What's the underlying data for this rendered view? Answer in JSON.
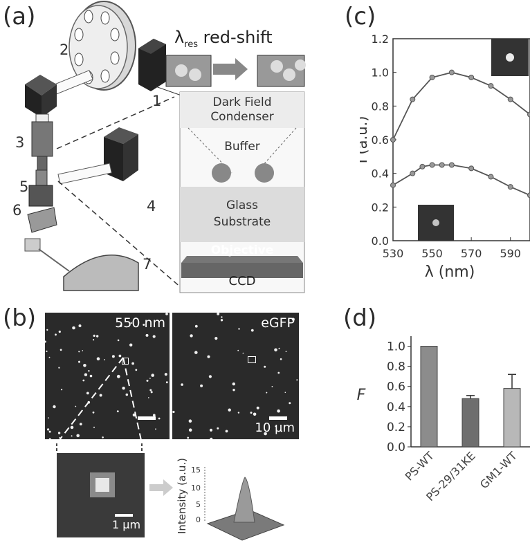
{
  "panel_labels": {
    "a": "(a)",
    "b": "(b)",
    "c": "(c)",
    "d": "(d)"
  },
  "panel_a": {
    "numbers": [
      "1",
      "2",
      "3",
      "4",
      "5",
      "6",
      "7"
    ],
    "lambda_title": "λ",
    "lambda_sub": "res",
    "lambda_rest": " red-shift",
    "layers": {
      "condenser": [
        "Dark Field",
        "Condenser"
      ],
      "buffer": "Buffer",
      "glass": [
        "Glass",
        "Substrate"
      ],
      "objective": "Objective",
      "ccd": "CCD"
    }
  },
  "panel_b": {
    "left_label": "550 nm",
    "right_label": "eGFP",
    "scale_right": "10 µm",
    "scale_zoom": "1 µm",
    "intensity_label": "Intensity (a.u.)",
    "intensity_ticks": [
      "15",
      "10",
      "5",
      "0"
    ]
  },
  "chart_data": [
    {
      "type": "line",
      "panel": "c",
      "xlabel": "λ (nm)",
      "ylabel": "I (a.u.)",
      "xlim": [
        530,
        600
      ],
      "ylim": [
        0.0,
        1.2
      ],
      "x_ticks": [
        530,
        550,
        570,
        590
      ],
      "y_ticks": [
        "0.0",
        "0.2",
        "0.4",
        "0.6",
        "0.8",
        "1.0",
        "1.2"
      ],
      "series": [
        {
          "x": [
            530,
            540,
            550,
            560,
            570,
            580,
            590,
            600
          ],
          "values": [
            0.6,
            0.84,
            0.97,
            1.0,
            0.97,
            0.92,
            0.84,
            0.75
          ]
        },
        {
          "x": [
            530,
            540,
            545,
            550,
            555,
            560,
            570,
            580,
            590,
            600
          ],
          "values": [
            0.33,
            0.4,
            0.44,
            0.45,
            0.45,
            0.45,
            0.43,
            0.38,
            0.32,
            0.27
          ]
        }
      ]
    },
    {
      "type": "bar",
      "panel": "d",
      "ylabel": "F",
      "ylim": [
        0.0,
        1.1
      ],
      "y_ticks": [
        "0.0",
        "0.2",
        "0.4",
        "0.6",
        "0.8",
        "1.0"
      ],
      "categories": [
        "PS-WT",
        "PS-29/31KE",
        "GM1-WT"
      ],
      "values": [
        1.0,
        0.48,
        0.58
      ],
      "errors": [
        0.0,
        0.03,
        0.14
      ]
    }
  ]
}
